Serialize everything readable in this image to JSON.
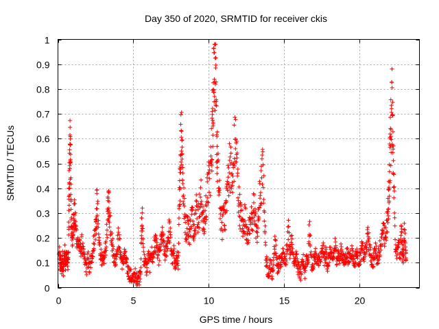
{
  "chart_data": {
    "type": "scatter",
    "title": "Day 350 of 2020, SRMTID for receiver ckis",
    "xlabel": "GPS time / hours",
    "ylabel": "SRMTID / TECUs",
    "xlim": [
      0,
      24
    ],
    "ylim": [
      0,
      1
    ],
    "xticks": [
      0,
      5,
      10,
      15,
      20
    ],
    "xtick_labels": [
      "0",
      "5",
      "10",
      "15",
      "20"
    ],
    "yticks": [
      0,
      0.1,
      0.2,
      0.3,
      0.4,
      0.5,
      0.6,
      0.7,
      0.8,
      0.9,
      1
    ],
    "ytick_labels": [
      "0",
      "0.1",
      "0.2",
      "0.3",
      "0.4",
      "0.5",
      "0.6",
      "0.7",
      "0.8",
      "0.9",
      "1"
    ],
    "grid": true,
    "marker": "+",
    "color": "#ff0000",
    "series": [
      {
        "name": "SRMTID",
        "points": [
          [
            0.0,
            0.1
          ],
          [
            0.1,
            0.14
          ],
          [
            0.15,
            0.08
          ],
          [
            0.2,
            0.12
          ],
          [
            0.25,
            0.06
          ],
          [
            0.3,
            0.13
          ],
          [
            0.35,
            0.05
          ],
          [
            0.4,
            0.11
          ],
          [
            0.45,
            0.15
          ],
          [
            0.5,
            0.1
          ],
          [
            0.55,
            0.12
          ],
          [
            0.6,
            0.14
          ],
          [
            0.65,
            0.09
          ],
          [
            0.7,
            0.13
          ],
          [
            0.72,
            0.33
          ],
          [
            0.75,
            0.42
          ],
          [
            0.78,
            0.5
          ],
          [
            0.8,
            0.55
          ],
          [
            0.82,
            0.57
          ],
          [
            0.85,
            0.45
          ],
          [
            0.88,
            0.3
          ],
          [
            0.9,
            0.22
          ],
          [
            0.95,
            0.2
          ],
          [
            1.0,
            0.25
          ],
          [
            1.05,
            0.28
          ],
          [
            1.1,
            0.29
          ],
          [
            1.15,
            0.27
          ],
          [
            1.2,
            0.22
          ],
          [
            1.3,
            0.19
          ],
          [
            1.4,
            0.17
          ],
          [
            1.5,
            0.15
          ],
          [
            1.6,
            0.18
          ],
          [
            1.7,
            0.13
          ],
          [
            1.8,
            0.1
          ],
          [
            1.9,
            0.08
          ],
          [
            2.0,
            0.12
          ],
          [
            2.1,
            0.07
          ],
          [
            2.2,
            0.11
          ],
          [
            2.3,
            0.14
          ],
          [
            2.4,
            0.19
          ],
          [
            2.5,
            0.24
          ],
          [
            2.55,
            0.27
          ],
          [
            2.6,
            0.36
          ],
          [
            2.7,
            0.2
          ],
          [
            2.8,
            0.15
          ],
          [
            2.9,
            0.12
          ],
          [
            3.0,
            0.09
          ],
          [
            3.1,
            0.13
          ],
          [
            3.2,
            0.18
          ],
          [
            3.3,
            0.28
          ],
          [
            3.35,
            0.35
          ],
          [
            3.4,
            0.32
          ],
          [
            3.5,
            0.25
          ],
          [
            3.6,
            0.18
          ],
          [
            3.7,
            0.13
          ],
          [
            3.8,
            0.1
          ],
          [
            3.9,
            0.15
          ],
          [
            4.0,
            0.2
          ],
          [
            4.1,
            0.17
          ],
          [
            4.2,
            0.12
          ],
          [
            4.3,
            0.09
          ],
          [
            4.4,
            0.14
          ],
          [
            4.5,
            0.11
          ],
          [
            4.6,
            0.08
          ],
          [
            4.7,
            0.06
          ],
          [
            4.8,
            0.05
          ],
          [
            4.9,
            0.04
          ],
          [
            5.0,
            0.03
          ],
          [
            5.1,
            0.06
          ],
          [
            5.2,
            0.02
          ],
          [
            5.3,
            0.05
          ],
          [
            5.4,
            0.04
          ],
          [
            5.5,
            0.08
          ],
          [
            5.55,
            0.24
          ],
          [
            5.6,
            0.27
          ],
          [
            5.7,
            0.12
          ],
          [
            5.8,
            0.1
          ],
          [
            5.9,
            0.07
          ],
          [
            6.0,
            0.13
          ],
          [
            6.1,
            0.09
          ],
          [
            6.2,
            0.15
          ],
          [
            6.3,
            0.11
          ],
          [
            6.4,
            0.17
          ],
          [
            6.5,
            0.19
          ],
          [
            6.6,
            0.14
          ],
          [
            6.7,
            0.12
          ],
          [
            6.8,
            0.16
          ],
          [
            6.9,
            0.21
          ],
          [
            7.0,
            0.18
          ],
          [
            7.1,
            0.13
          ],
          [
            7.2,
            0.15
          ],
          [
            7.3,
            0.2
          ],
          [
            7.4,
            0.24
          ],
          [
            7.5,
            0.17
          ],
          [
            7.6,
            0.11
          ],
          [
            7.7,
            0.14
          ],
          [
            7.8,
            0.09
          ],
          [
            7.9,
            0.12
          ],
          [
            8.0,
            0.1
          ],
          [
            8.05,
            0.3
          ],
          [
            8.1,
            0.45
          ],
          [
            8.15,
            0.58
          ],
          [
            8.2,
            0.66
          ],
          [
            8.25,
            0.55
          ],
          [
            8.3,
            0.4
          ],
          [
            8.4,
            0.3
          ],
          [
            8.5,
            0.23
          ],
          [
            8.6,
            0.27
          ],
          [
            8.7,
            0.21
          ],
          [
            8.8,
            0.25
          ],
          [
            8.9,
            0.3
          ],
          [
            9.0,
            0.24
          ],
          [
            9.1,
            0.28
          ],
          [
            9.2,
            0.33
          ],
          [
            9.3,
            0.27
          ],
          [
            9.4,
            0.32
          ],
          [
            9.5,
            0.36
          ],
          [
            9.6,
            0.29
          ],
          [
            9.7,
            0.24
          ],
          [
            9.8,
            0.31
          ],
          [
            9.9,
            0.37
          ],
          [
            10.0,
            0.42
          ],
          [
            10.1,
            0.46
          ],
          [
            10.2,
            0.55
          ],
          [
            10.25,
            0.65
          ],
          [
            10.3,
            0.78
          ],
          [
            10.35,
            0.9
          ],
          [
            10.4,
            0.96
          ],
          [
            10.45,
            0.85
          ],
          [
            10.5,
            0.7
          ],
          [
            10.55,
            0.58
          ],
          [
            10.6,
            0.48
          ],
          [
            10.7,
            0.38
          ],
          [
            10.8,
            0.3
          ],
          [
            10.9,
            0.24
          ],
          [
            11.0,
            0.33
          ],
          [
            11.1,
            0.27
          ],
          [
            11.2,
            0.38
          ],
          [
            11.3,
            0.42
          ],
          [
            11.4,
            0.52
          ],
          [
            11.5,
            0.46
          ],
          [
            11.6,
            0.4
          ],
          [
            11.7,
            0.55
          ],
          [
            11.8,
            0.6
          ],
          [
            11.9,
            0.48
          ],
          [
            12.0,
            0.35
          ],
          [
            12.1,
            0.3
          ],
          [
            12.2,
            0.27
          ],
          [
            12.3,
            0.23
          ],
          [
            12.4,
            0.29
          ],
          [
            12.5,
            0.25
          ],
          [
            12.6,
            0.2
          ],
          [
            12.7,
            0.24
          ],
          [
            12.8,
            0.31
          ],
          [
            12.9,
            0.22
          ],
          [
            13.0,
            0.34
          ],
          [
            13.1,
            0.28
          ],
          [
            13.2,
            0.21
          ],
          [
            13.3,
            0.26
          ],
          [
            13.4,
            0.37
          ],
          [
            13.5,
            0.41
          ],
          [
            13.6,
            0.48
          ],
          [
            13.7,
            0.33
          ],
          [
            13.8,
            0.12
          ],
          [
            13.9,
            0.08
          ],
          [
            14.0,
            0.06
          ],
          [
            14.1,
            0.1
          ],
          [
            14.2,
            0.05
          ],
          [
            14.3,
            0.09
          ],
          [
            14.4,
            0.2
          ],
          [
            14.5,
            0.13
          ],
          [
            14.6,
            0.07
          ],
          [
            14.7,
            0.11
          ],
          [
            14.8,
            0.09
          ],
          [
            14.9,
            0.14
          ],
          [
            15.0,
            0.12
          ],
          [
            15.1,
            0.1
          ],
          [
            15.2,
            0.17
          ],
          [
            15.3,
            0.23
          ],
          [
            15.4,
            0.15
          ],
          [
            15.5,
            0.19
          ],
          [
            15.6,
            0.14
          ],
          [
            15.7,
            0.11
          ],
          [
            15.8,
            0.13
          ],
          [
            15.9,
            0.09
          ],
          [
            16.0,
            0.07
          ],
          [
            16.1,
            0.05
          ],
          [
            16.2,
            0.08
          ],
          [
            16.3,
            0.11
          ],
          [
            16.4,
            0.06
          ],
          [
            16.5,
            0.13
          ],
          [
            16.6,
            0.1
          ],
          [
            16.7,
            0.25
          ],
          [
            16.8,
            0.12
          ],
          [
            16.9,
            0.08
          ],
          [
            17.0,
            0.11
          ],
          [
            17.1,
            0.14
          ],
          [
            17.2,
            0.09
          ],
          [
            17.3,
            0.12
          ],
          [
            17.4,
            0.1
          ],
          [
            17.5,
            0.13
          ],
          [
            17.6,
            0.16
          ],
          [
            17.7,
            0.11
          ],
          [
            17.8,
            0.14
          ],
          [
            17.9,
            0.09
          ],
          [
            18.0,
            0.12
          ],
          [
            18.1,
            0.15
          ],
          [
            18.2,
            0.1
          ],
          [
            18.3,
            0.13
          ],
          [
            18.4,
            0.17
          ],
          [
            18.5,
            0.12
          ],
          [
            18.6,
            0.14
          ],
          [
            18.7,
            0.11
          ],
          [
            18.8,
            0.15
          ],
          [
            18.9,
            0.13
          ],
          [
            19.0,
            0.1
          ],
          [
            19.1,
            0.12
          ],
          [
            19.2,
            0.14
          ],
          [
            19.3,
            0.11
          ],
          [
            19.4,
            0.13
          ],
          [
            19.5,
            0.15
          ],
          [
            19.6,
            0.12
          ],
          [
            19.7,
            0.1
          ],
          [
            19.8,
            0.14
          ],
          [
            19.9,
            0.12
          ],
          [
            20.0,
            0.11
          ],
          [
            20.1,
            0.13
          ],
          [
            20.2,
            0.16
          ],
          [
            20.3,
            0.12
          ],
          [
            20.4,
            0.14
          ],
          [
            20.5,
            0.18
          ],
          [
            20.6,
            0.21
          ],
          [
            20.7,
            0.15
          ],
          [
            20.8,
            0.12
          ],
          [
            20.9,
            0.1
          ],
          [
            21.0,
            0.13
          ],
          [
            21.1,
            0.16
          ],
          [
            21.2,
            0.11
          ],
          [
            21.3,
            0.14
          ],
          [
            21.4,
            0.17
          ],
          [
            21.5,
            0.19
          ],
          [
            21.6,
            0.22
          ],
          [
            21.7,
            0.2
          ],
          [
            21.8,
            0.23
          ],
          [
            21.9,
            0.28
          ],
          [
            21.95,
            0.35
          ],
          [
            22.0,
            0.45
          ],
          [
            22.05,
            0.55
          ],
          [
            22.1,
            0.63
          ],
          [
            22.15,
            0.7
          ],
          [
            22.2,
            0.74
          ],
          [
            22.25,
            0.6
          ],
          [
            22.3,
            0.4
          ],
          [
            22.4,
            0.18
          ],
          [
            22.5,
            0.15
          ],
          [
            22.6,
            0.19
          ],
          [
            22.7,
            0.12
          ],
          [
            22.8,
            0.22
          ],
          [
            22.85,
            0.17
          ],
          [
            22.9,
            0.1
          ],
          [
            22.95,
            0.14
          ],
          [
            23.0,
            0.24
          ],
          [
            23.1,
            0.13
          ]
        ]
      }
    ]
  }
}
